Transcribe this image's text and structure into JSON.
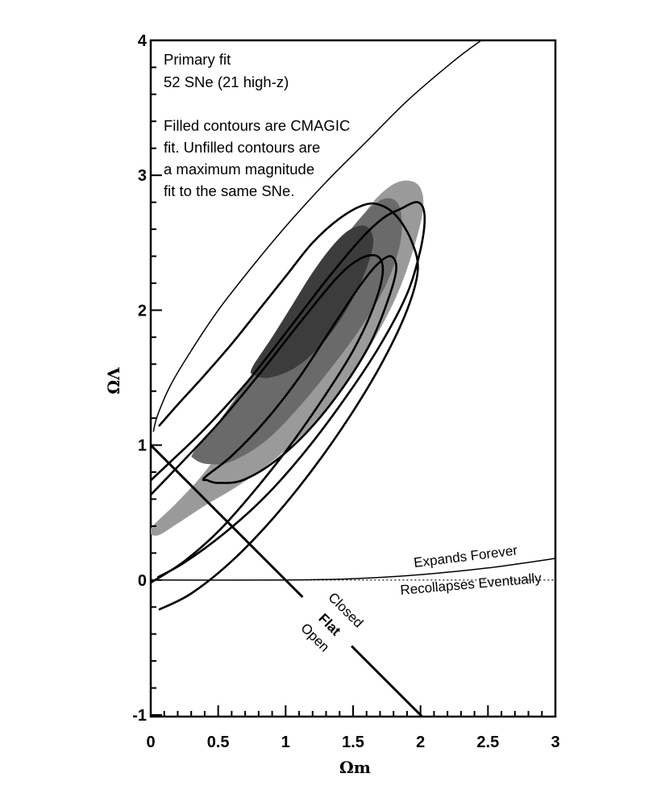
{
  "chart_data": {
    "type": "contour",
    "xlabel": "Ωm",
    "ylabel": "ΩΛ",
    "xlim": [
      0,
      3
    ],
    "ylim": [
      -1,
      4
    ],
    "x_ticks": [
      "0",
      "0.5",
      "1",
      "1.5",
      "2",
      "2.5",
      "3"
    ],
    "y_ticks": [
      "-1",
      "0",
      "1",
      "2",
      "3",
      "4"
    ],
    "grid": false,
    "annotations": {
      "fit_title": "Primary fit",
      "sample": "52 SNe (21 high-z)",
      "note_lines": [
        "Filled contours are CMAGIC",
        "fit.  Unfilled contours are",
        "a maximum magnitude",
        "fit to the same SNe."
      ]
    },
    "region_labels": {
      "expands": "Expands Forever",
      "recollapses": "Recollapses Eventually",
      "closed": "Closed",
      "flat": "Flat",
      "open": "Open"
    },
    "series": [
      {
        "kind": "filled",
        "shade": "#9a9a9a",
        "points": [
          [
            0.0,
            0.38
          ],
          [
            0.2,
            0.58
          ],
          [
            0.4,
            0.8
          ],
          [
            0.6,
            1.08
          ],
          [
            0.8,
            1.4
          ],
          [
            1.0,
            1.72
          ],
          [
            1.2,
            2.05
          ],
          [
            1.4,
            2.42
          ],
          [
            1.6,
            2.74
          ],
          [
            1.75,
            2.9
          ],
          [
            1.88,
            2.96
          ],
          [
            1.99,
            2.92
          ],
          [
            2.02,
            2.76
          ],
          [
            1.95,
            2.46
          ],
          [
            1.82,
            2.1
          ],
          [
            1.62,
            1.72
          ],
          [
            1.4,
            1.38
          ],
          [
            1.15,
            1.1
          ],
          [
            0.9,
            0.88
          ],
          [
            0.65,
            0.7
          ],
          [
            0.4,
            0.55
          ],
          [
            0.2,
            0.42
          ],
          [
            0.05,
            0.33
          ]
        ]
      },
      {
        "kind": "filled",
        "shade": "#6a6a6a",
        "points": [
          [
            0.32,
            0.95
          ],
          [
            0.5,
            1.17
          ],
          [
            0.7,
            1.45
          ],
          [
            0.9,
            1.74
          ],
          [
            1.1,
            2.04
          ],
          [
            1.3,
            2.36
          ],
          [
            1.5,
            2.62
          ],
          [
            1.65,
            2.78
          ],
          [
            1.77,
            2.83
          ],
          [
            1.85,
            2.75
          ],
          [
            1.85,
            2.5
          ],
          [
            1.74,
            2.18
          ],
          [
            1.55,
            1.86
          ],
          [
            1.32,
            1.55
          ],
          [
            1.08,
            1.26
          ],
          [
            0.85,
            1.03
          ],
          [
            0.6,
            0.88
          ],
          [
            0.42,
            0.86
          ],
          [
            0.32,
            0.9
          ]
        ]
      },
      {
        "kind": "filled",
        "shade": "#3c3c3c",
        "points": [
          [
            0.75,
            1.57
          ],
          [
            0.9,
            1.8
          ],
          [
            1.05,
            2.04
          ],
          [
            1.2,
            2.28
          ],
          [
            1.35,
            2.48
          ],
          [
            1.48,
            2.6
          ],
          [
            1.6,
            2.62
          ],
          [
            1.65,
            2.5
          ],
          [
            1.58,
            2.26
          ],
          [
            1.45,
            2.0
          ],
          [
            1.28,
            1.76
          ],
          [
            1.08,
            1.58
          ],
          [
            0.88,
            1.5
          ],
          [
            0.77,
            1.52
          ]
        ]
      },
      {
        "kind": "line",
        "points": [
          [
            -0.02,
            0.72
          ],
          [
            0.15,
            0.88
          ],
          [
            0.4,
            1.12
          ],
          [
            0.7,
            1.45
          ],
          [
            1.0,
            1.83
          ],
          [
            1.3,
            2.22
          ],
          [
            1.55,
            2.52
          ],
          [
            1.72,
            2.68
          ],
          [
            1.85,
            2.75
          ],
          [
            1.98,
            2.8
          ],
          [
            2.03,
            2.7
          ],
          [
            2.0,
            2.45
          ],
          [
            1.9,
            2.12
          ],
          [
            1.7,
            1.74
          ],
          [
            1.45,
            1.36
          ],
          [
            1.15,
            0.96
          ],
          [
            0.85,
            0.62
          ],
          [
            0.55,
            0.35
          ],
          [
            0.25,
            0.13
          ],
          [
            0.05,
            0.02
          ]
        ]
      },
      {
        "kind": "line",
        "points": [
          [
            0.06,
            1.14
          ],
          [
            0.2,
            1.3
          ],
          [
            0.4,
            1.52
          ],
          [
            0.6,
            1.75
          ],
          [
            0.8,
            2.0
          ],
          [
            1.0,
            2.25
          ],
          [
            1.2,
            2.5
          ],
          [
            1.4,
            2.68
          ],
          [
            1.58,
            2.78
          ],
          [
            1.7,
            2.78
          ],
          [
            1.82,
            2.7
          ],
          [
            1.93,
            2.52
          ],
          [
            1.98,
            2.3
          ],
          [
            1.9,
            2.0
          ],
          [
            1.72,
            1.62
          ],
          [
            1.48,
            1.22
          ],
          [
            1.2,
            0.82
          ],
          [
            0.9,
            0.45
          ],
          [
            0.6,
            0.14
          ],
          [
            0.3,
            -0.1
          ],
          [
            0.06,
            -0.22
          ]
        ]
      },
      {
        "kind": "line",
        "points": [
          [
            0.4,
            0.76
          ],
          [
            0.6,
            0.92
          ],
          [
            0.85,
            1.18
          ],
          [
            1.1,
            1.5
          ],
          [
            1.35,
            1.88
          ],
          [
            1.55,
            2.18
          ],
          [
            1.68,
            2.34
          ],
          [
            1.78,
            2.4
          ],
          [
            1.82,
            2.3
          ],
          [
            1.75,
            2.05
          ],
          [
            1.62,
            1.74
          ],
          [
            1.42,
            1.42
          ],
          [
            1.18,
            1.12
          ],
          [
            0.92,
            0.88
          ],
          [
            0.68,
            0.74
          ],
          [
            0.5,
            0.72
          ],
          [
            0.42,
            0.74
          ]
        ]
      },
      {
        "kind": "line",
        "points": [
          [
            -0.05,
            0.58
          ],
          [
            0.2,
            0.84
          ],
          [
            0.5,
            1.16
          ],
          [
            0.8,
            1.52
          ],
          [
            1.1,
            1.9
          ],
          [
            1.38,
            2.24
          ],
          [
            1.55,
            2.38
          ],
          [
            1.68,
            2.4
          ],
          [
            1.72,
            2.28
          ],
          [
            1.65,
            2.02
          ],
          [
            1.5,
            1.7
          ],
          [
            1.3,
            1.38
          ],
          [
            1.05,
            1.02
          ],
          [
            0.8,
            0.7
          ],
          [
            0.52,
            0.38
          ],
          [
            0.25,
            0.14
          ],
          [
            0.0,
            -0.02
          ]
        ]
      }
    ],
    "boundaries": [
      {
        "name": "no-big-bang",
        "points": [
          [
            0.02,
            1.1
          ],
          [
            0.05,
            1.22
          ],
          [
            0.15,
            1.45
          ],
          [
            0.3,
            1.7
          ],
          [
            0.5,
            2.0
          ],
          [
            0.75,
            2.32
          ],
          [
            1.0,
            2.62
          ],
          [
            1.3,
            2.95
          ],
          [
            1.6,
            3.25
          ],
          [
            1.9,
            3.55
          ],
          [
            2.25,
            3.85
          ],
          [
            2.45,
            4.0
          ]
        ]
      },
      {
        "name": "flat",
        "points": [
          [
            0.0,
            1.0
          ],
          [
            2.05,
            -1.05
          ]
        ]
      },
      {
        "name": "expands-forever",
        "points": [
          [
            0.0,
            0.0
          ],
          [
            1.0,
            0.0
          ],
          [
            1.5,
            0.01
          ],
          [
            2.0,
            0.04
          ],
          [
            2.5,
            0.09
          ],
          [
            3.0,
            0.16
          ]
        ]
      },
      {
        "name": "recollapses",
        "points": [
          [
            1.0,
            0.0
          ],
          [
            3.0,
            0.0
          ]
        ]
      }
    ]
  }
}
